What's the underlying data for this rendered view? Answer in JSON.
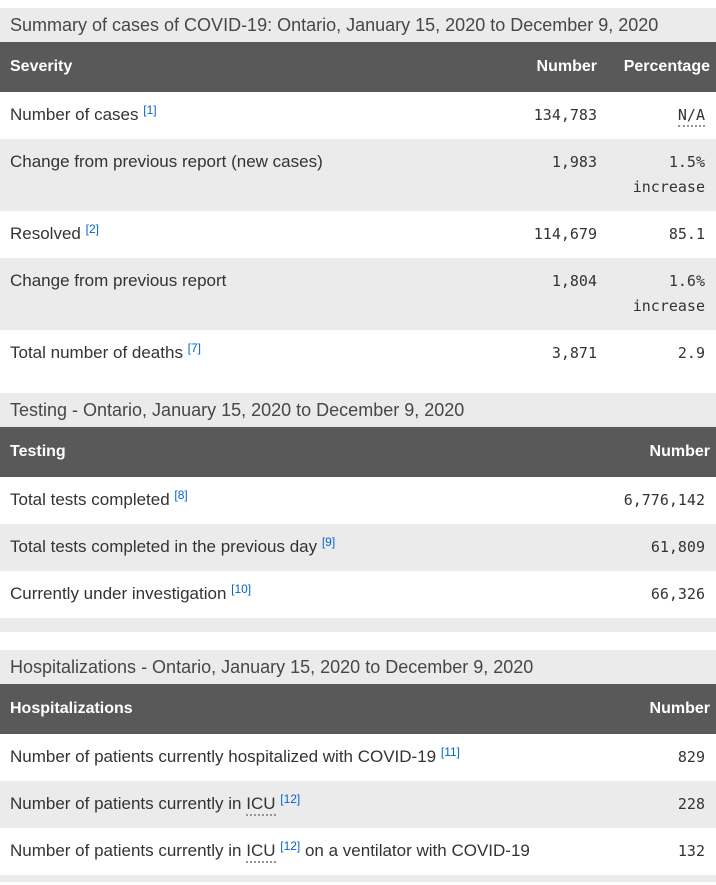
{
  "theme": {
    "header_bg": "#595959",
    "header_text": "#ffffff",
    "stripe_bg": "#ebebeb",
    "link_blue": "#0066cc",
    "body_text": "#333333"
  },
  "sections": [
    {
      "caption": "Summary of cases of COVID-19: Ontario, January 15, 2020 to December 9, 2020",
      "columns": [
        "Severity",
        "Number",
        "Percentage"
      ],
      "rows": [
        {
          "label": [
            {
              "t": "text",
              "v": "Number of cases "
            },
            {
              "t": "ref",
              "v": "[1]"
            }
          ],
          "number": "134,783",
          "percentage": [
            {
              "t": "abbr",
              "v": "N/A"
            }
          ]
        },
        {
          "label": [
            {
              "t": "text",
              "v": "Change from previous report (new cases)"
            }
          ],
          "number": "1,983",
          "percentage": [
            {
              "t": "text",
              "v": "1.5% increase"
            }
          ]
        },
        {
          "label": [
            {
              "t": "text",
              "v": "Resolved "
            },
            {
              "t": "ref",
              "v": "[2]"
            }
          ],
          "number": "114,679",
          "percentage": [
            {
              "t": "text",
              "v": "85.1"
            }
          ]
        },
        {
          "label": [
            {
              "t": "text",
              "v": "Change from previous report"
            }
          ],
          "number": "1,804",
          "percentage": [
            {
              "t": "text",
              "v": "1.6% increase"
            }
          ]
        },
        {
          "label": [
            {
              "t": "text",
              "v": "Total number of deaths "
            },
            {
              "t": "ref",
              "v": "[7]"
            }
          ],
          "number": "3,871",
          "percentage": [
            {
              "t": "text",
              "v": "2.9"
            }
          ]
        }
      ]
    },
    {
      "caption": "Testing - Ontario, January 15, 2020 to December 9, 2020",
      "columns": [
        "Testing",
        "Number"
      ],
      "rows": [
        {
          "label": [
            {
              "t": "text",
              "v": "Total tests completed "
            },
            {
              "t": "ref",
              "v": "[8]"
            }
          ],
          "number": "6,776,142"
        },
        {
          "label": [
            {
              "t": "text",
              "v": "Total tests completed in the previous day "
            },
            {
              "t": "ref",
              "v": "[9]"
            }
          ],
          "number": "61,809"
        },
        {
          "label": [
            {
              "t": "text",
              "v": "Currently under investigation "
            },
            {
              "t": "ref",
              "v": "[10]"
            }
          ],
          "number": "66,326"
        },
        {
          "spacer": true
        }
      ]
    },
    {
      "caption": "Hospitalizations - Ontario, January 15, 2020 to December 9, 2020",
      "columns": [
        "Hospitalizations",
        "Number"
      ],
      "rows": [
        {
          "label": [
            {
              "t": "text",
              "v": "Number of patients currently hospitalized with COVID-19 "
            },
            {
              "t": "ref",
              "v": "[11]"
            }
          ],
          "number": "829"
        },
        {
          "label": [
            {
              "t": "text",
              "v": "Number of patients currently in "
            },
            {
              "t": "abbr",
              "v": "ICU"
            },
            {
              "t": "text",
              "v": " "
            },
            {
              "t": "ref",
              "v": "[12]"
            }
          ],
          "number": "228"
        },
        {
          "label": [
            {
              "t": "text",
              "v": "Number of patients currently in "
            },
            {
              "t": "abbr",
              "v": "ICU"
            },
            {
              "t": "text",
              "v": " "
            },
            {
              "t": "ref",
              "v": "[12]"
            },
            {
              "t": "text",
              "v": " on a ventilator with COVID-19"
            }
          ],
          "number": "132"
        },
        {
          "spacer": true,
          "partial": true
        }
      ]
    }
  ]
}
